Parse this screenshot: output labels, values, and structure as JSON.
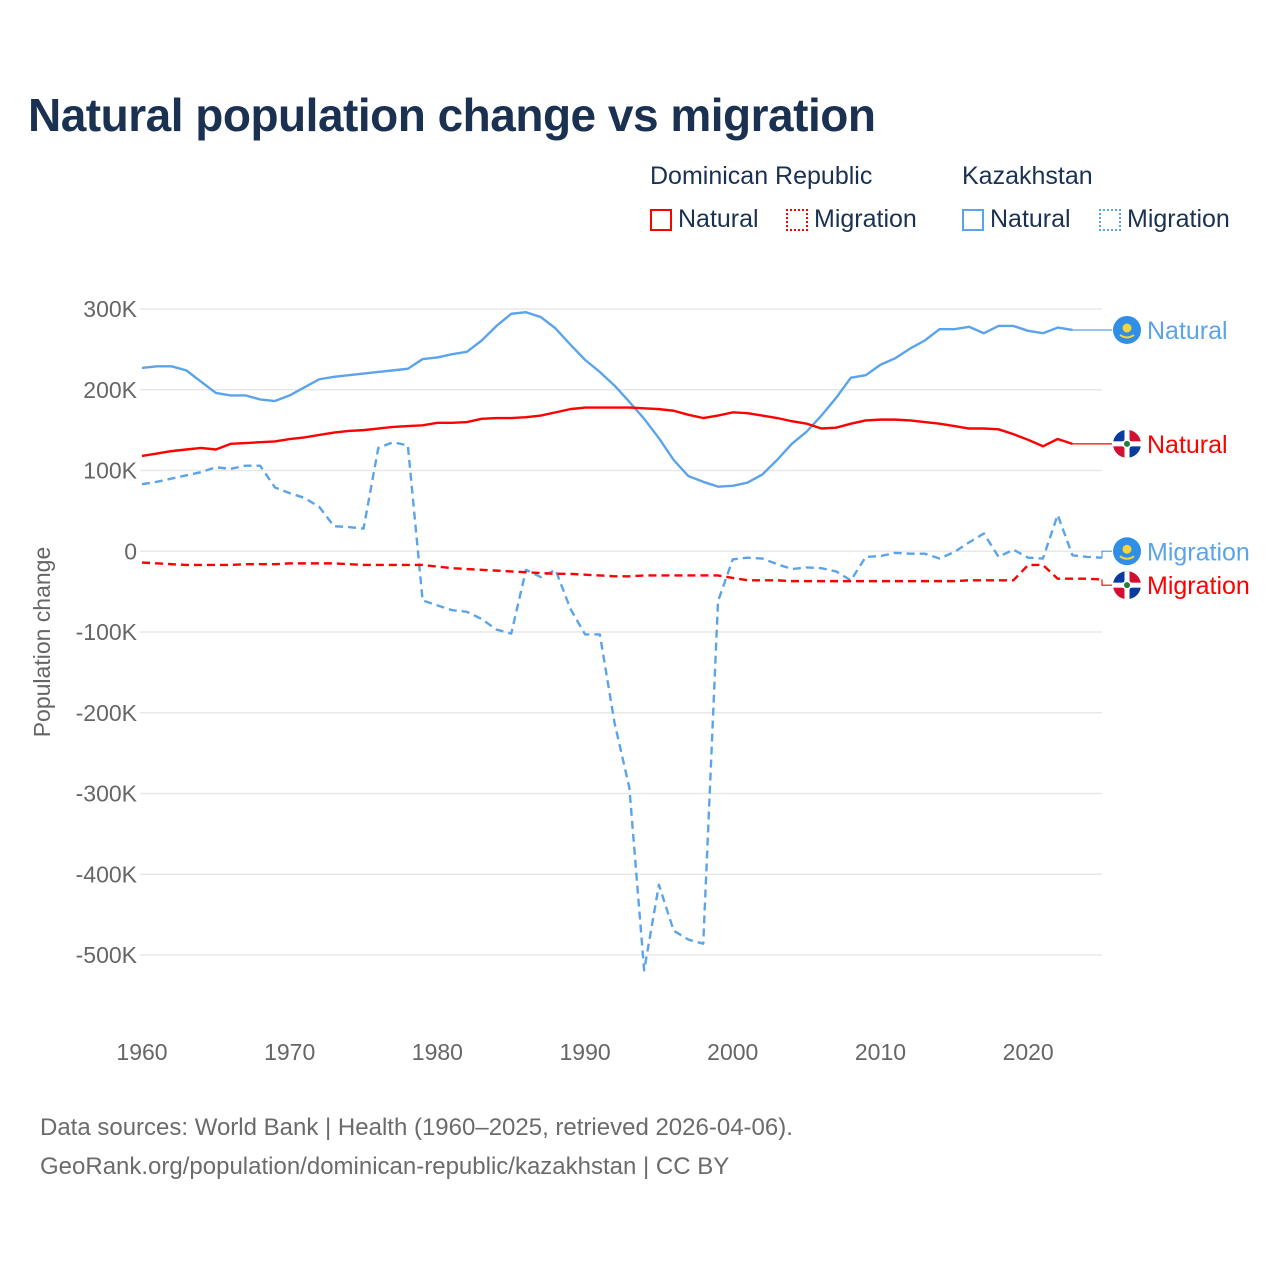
{
  "title": "Natural population change vs migration",
  "legend": {
    "groups": [
      {
        "name": "Dominican Republic",
        "items": [
          "Natural",
          "Migration"
        ],
        "color": "#ff0000"
      },
      {
        "name": "Kazakhstan",
        "items": [
          "Natural",
          "Migration"
        ],
        "color": "#5ba4ea"
      }
    ]
  },
  "source": {
    "line1": "Data sources: World Bank | Health (1960–2025, retrieved 2026-04-06).",
    "line2": "GeoRank.org/population/dominican-republic/kazakhstan | CC BY"
  },
  "chart_data": {
    "type": "line",
    "title": "Natural population change vs migration",
    "xlabel": "",
    "ylabel": "Population change",
    "xlim": [
      1960,
      2025
    ],
    "ylim": [
      -500000,
      300000
    ],
    "x_ticks": [
      1960,
      1970,
      1980,
      1990,
      2000,
      2010,
      2020
    ],
    "x_tick_labels": [
      "1960",
      "1970",
      "1980",
      "1990",
      "2000",
      "2010",
      "2020"
    ],
    "y_ticks": [
      300000,
      200000,
      100000,
      0,
      -100000,
      -200000,
      -300000,
      -400000,
      -500000
    ],
    "y_tick_labels": [
      "300K",
      "200K",
      "100K",
      "0",
      "-100K",
      "-200K",
      "-300K",
      "-400K",
      "-500K"
    ],
    "grid": true,
    "legend_position": "top-right",
    "x_start": 1960,
    "series": [
      {
        "name": "Kazakhstan Natural",
        "end_label": "Natural",
        "country": "Kazakhstan",
        "color": "#5ba4ea",
        "dash": false,
        "values": [
          227,
          229,
          229,
          224,
          210,
          196,
          193,
          193,
          188,
          186,
          193,
          203,
          213,
          216,
          218,
          220,
          222,
          224,
          226,
          238,
          240,
          244,
          247,
          261,
          279,
          294,
          296,
          290,
          276,
          256,
          237,
          222,
          205,
          185,
          164,
          140,
          113,
          93,
          86,
          80,
          81,
          85,
          95,
          113,
          133,
          148,
          168,
          190,
          215,
          218,
          231,
          239,
          251,
          261,
          275,
          275,
          278,
          270,
          279,
          279,
          273,
          270,
          277,
          274
        ],
        "label_value": 274
      },
      {
        "name": "Dominican Republic Natural",
        "end_label": "Natural",
        "country": "Dominican Republic",
        "color": "#ff0000",
        "dash": false,
        "values": [
          118,
          121,
          124,
          126,
          128,
          126,
          133,
          134,
          135,
          136,
          139,
          141,
          144,
          147,
          149,
          150,
          152,
          154,
          155,
          156,
          159,
          159,
          160,
          164,
          165,
          165,
          166,
          168,
          172,
          176,
          178,
          178,
          178,
          178,
          177,
          176,
          174,
          169,
          165,
          168,
          172,
          171,
          168,
          165,
          161,
          158,
          152,
          153,
          158,
          162,
          163,
          163,
          162,
          160,
          158,
          155,
          152,
          152,
          151,
          145,
          138,
          130,
          139,
          133
        ],
        "label_value": 133
      },
      {
        "name": "Kazakhstan Migration",
        "end_label": "Migration",
        "country": "Kazakhstan",
        "color": "#5ba4ea",
        "dash": true,
        "values": [
          83,
          86,
          90,
          94,
          98,
          104,
          102,
          106,
          106,
          79,
          72,
          66,
          55,
          31,
          30,
          28,
          128,
          135,
          131,
          -61,
          -67,
          -73,
          -75,
          -84,
          -97,
          -102,
          -23,
          -32,
          -23,
          -71,
          -103,
          -103,
          -213,
          -293,
          -519,
          -413,
          -470,
          -481,
          -486,
          -62,
          -10,
          -8,
          -9,
          -16,
          -22,
          -20,
          -21,
          -25,
          -36,
          -7,
          -6,
          -2,
          -3,
          -3,
          -9,
          -1,
          11,
          22,
          -7,
          2,
          -8,
          -9,
          45,
          -5,
          -7,
          -8
        ],
        "label_value": 0
      },
      {
        "name": "Dominican Republic Migration",
        "end_label": "Migration",
        "country": "Dominican Republic",
        "color": "#ff0000",
        "dash": true,
        "values": [
          -14,
          -15,
          -16,
          -17,
          -17,
          -17,
          -17,
          -16,
          -16,
          -16,
          -15,
          -15,
          -15,
          -15,
          -16,
          -17,
          -17,
          -17,
          -17,
          -17,
          -19,
          -21,
          -22,
          -23,
          -24,
          -25,
          -26,
          -27,
          -28,
          -28,
          -29,
          -30,
          -31,
          -31,
          -30,
          -30,
          -30,
          -30,
          -30,
          -30,
          -33,
          -36,
          -36,
          -36,
          -37,
          -37,
          -37,
          -37,
          -37,
          -37,
          -37,
          -37,
          -37,
          -37,
          -37,
          -37,
          -36,
          -36,
          -36,
          -36,
          -17,
          -17,
          -34,
          -34,
          -34,
          -35
        ],
        "label_value": -42
      }
    ],
    "value_unit": "thousands"
  }
}
